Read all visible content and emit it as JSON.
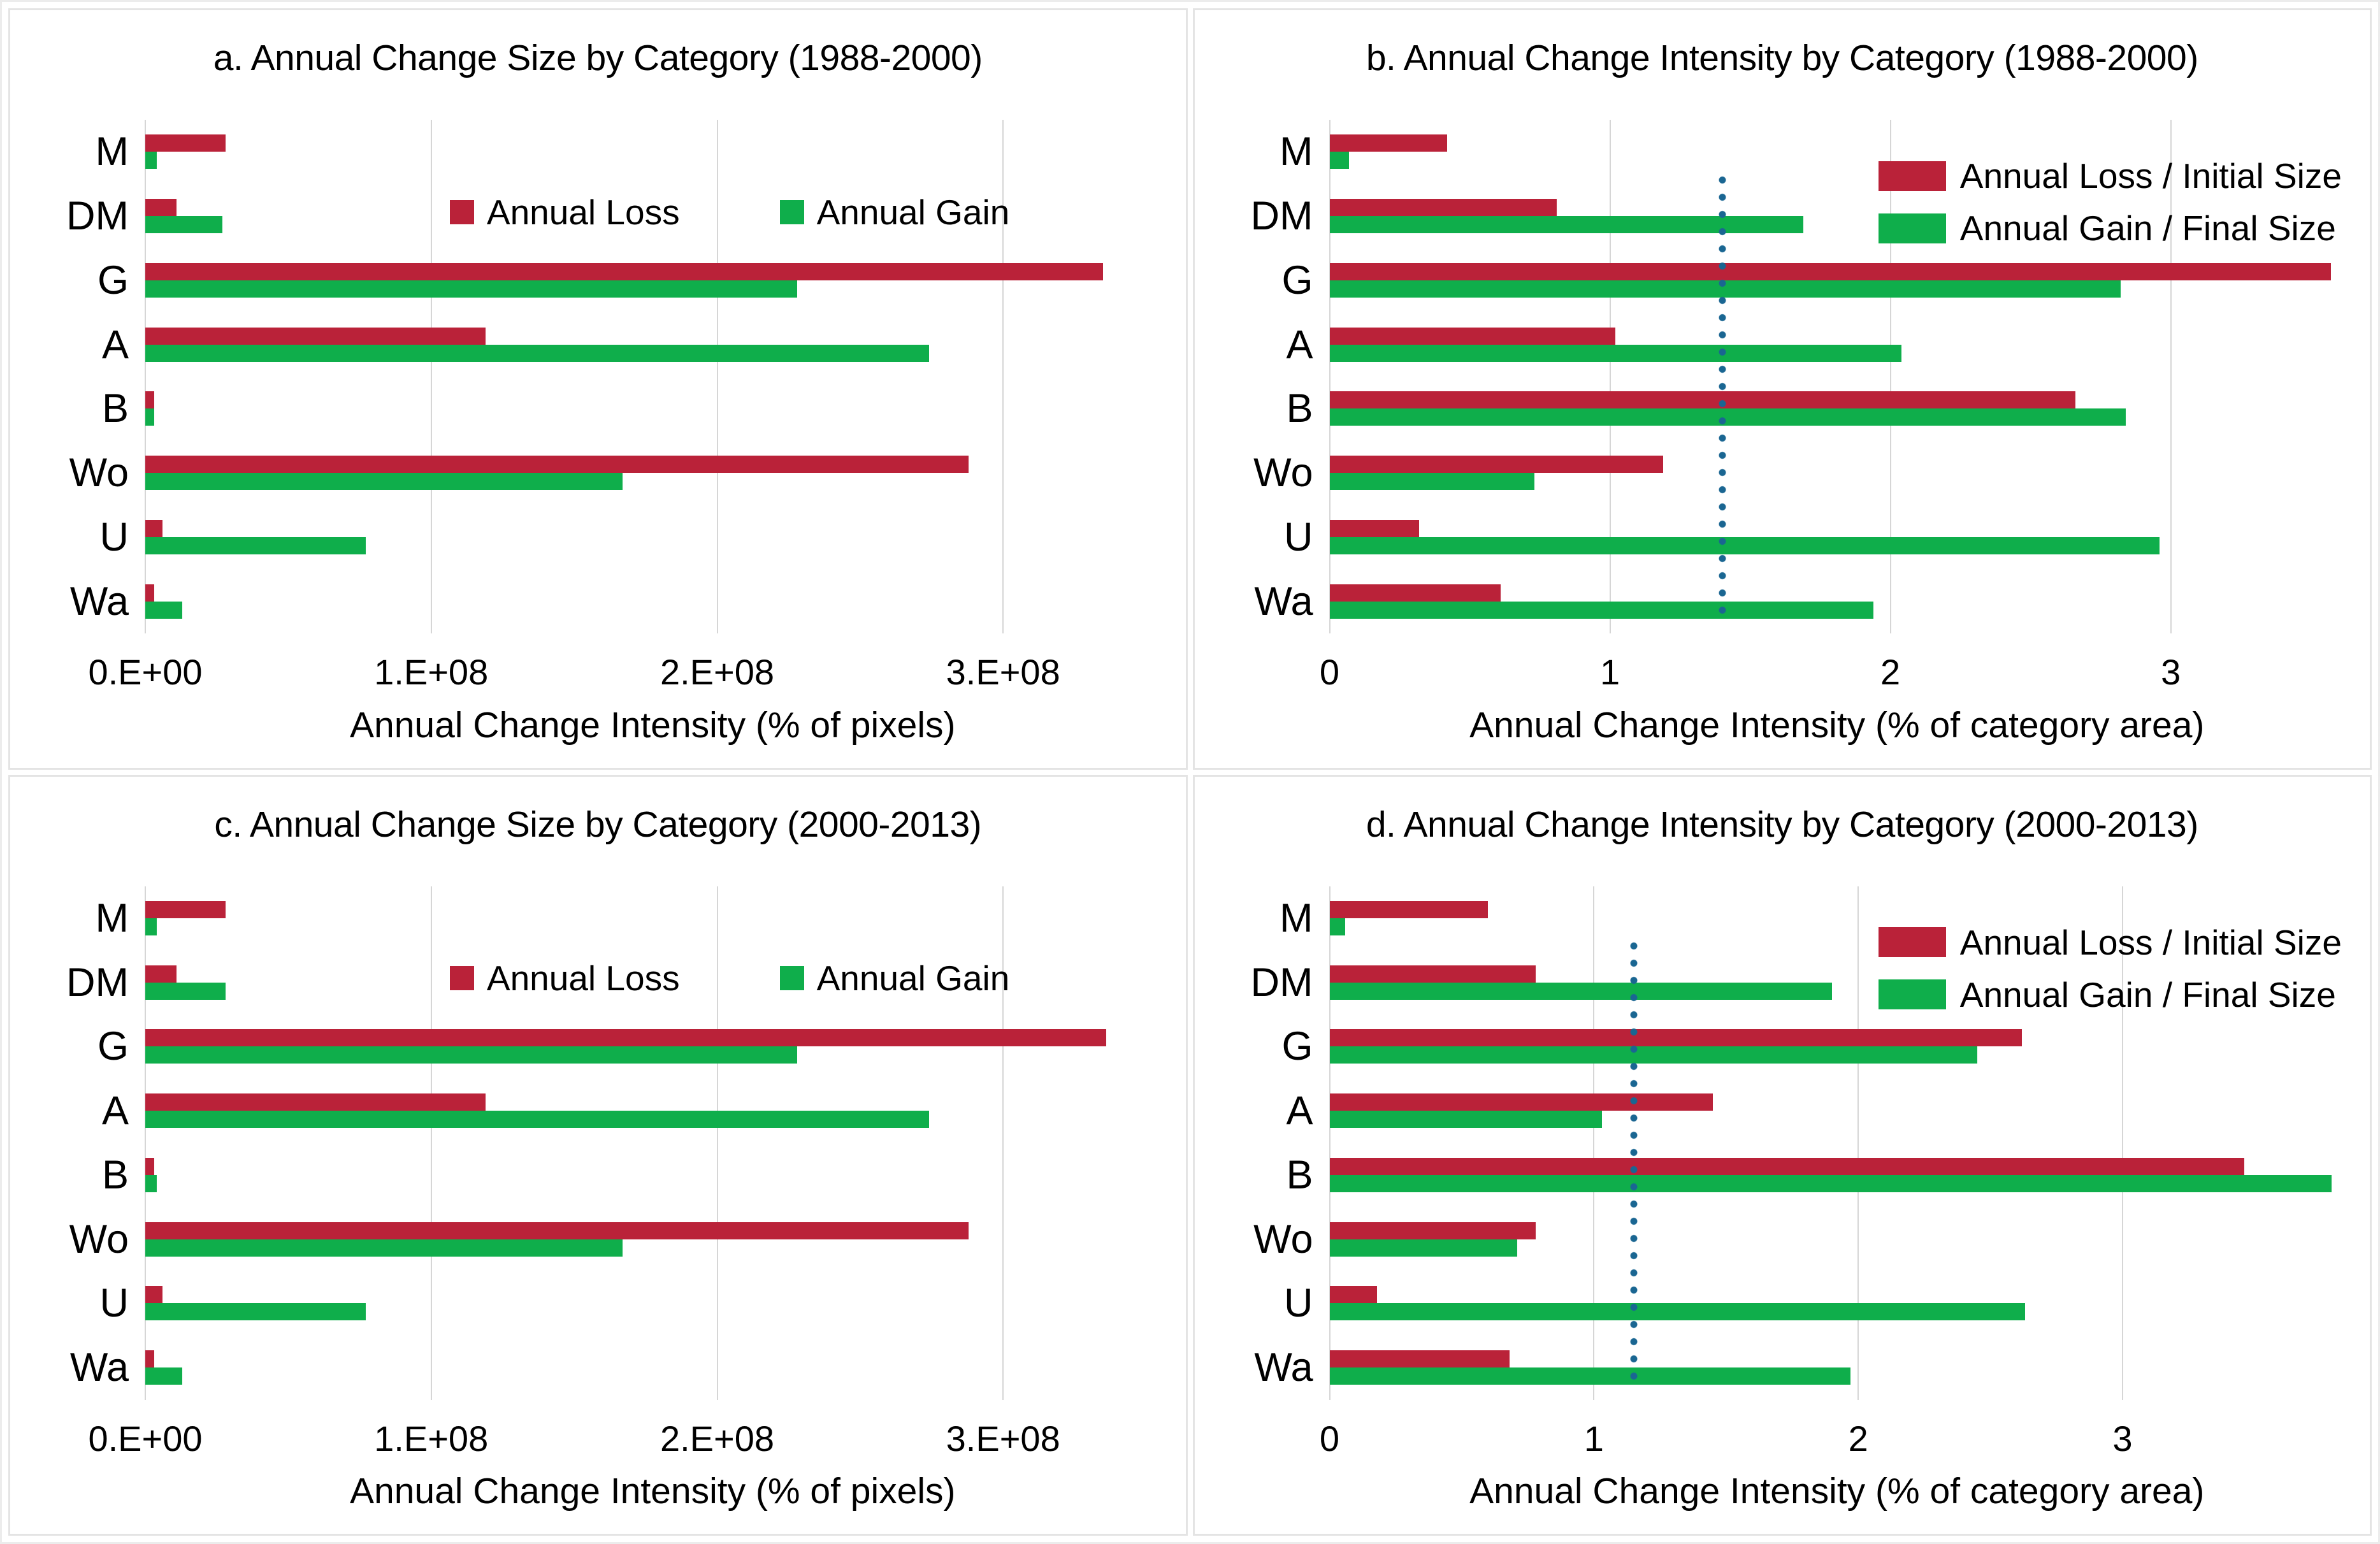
{
  "colors": {
    "loss": "#ba2239",
    "gain": "#0fae4b",
    "refline": "#1a6692",
    "grid": "#d6d6d6",
    "panel_border": "#e4e4e4",
    "text": "#000000",
    "background": "#ffffff"
  },
  "chart_data": [
    {
      "id": "a",
      "type": "bar",
      "orientation": "horizontal",
      "title": "a. Annual Change Size by Category (1988-2000)",
      "xlabel": "Annual Change Intensity (% of pixels)",
      "categories": [
        "M",
        "DM",
        "G",
        "A",
        "B",
        "Wo",
        "U",
        "Wa"
      ],
      "series": [
        {
          "name": "Annual Loss",
          "color_key": "loss",
          "values": [
            28000000,
            11000000,
            335000000,
            119000000,
            3000000,
            288000000,
            6000000,
            3000000
          ]
        },
        {
          "name": "Annual Gain",
          "color_key": "gain",
          "values": [
            4000000,
            27000000,
            228000000,
            274000000,
            3000000,
            167000000,
            77000000,
            13000000
          ]
        }
      ],
      "xticks": {
        "values": [
          0,
          100000000,
          200000000,
          300000000
        ],
        "labels": [
          "0.E+00",
          "1.E+08",
          "2.E+08",
          "3.E+08"
        ]
      },
      "xlim": [
        0,
        355000000
      ],
      "grid": true,
      "legend_style": "inline",
      "legend_position": "inside-upper-middle"
    },
    {
      "id": "b",
      "type": "bar",
      "orientation": "horizontal",
      "title": "b. Annual Change Intensity by Category (1988-2000)",
      "xlabel": "Annual Change Intensity (% of category area)",
      "categories": [
        "M",
        "DM",
        "G",
        "A",
        "B",
        "Wo",
        "U",
        "Wa"
      ],
      "series": [
        {
          "name": "Annual Loss / Initial Size",
          "color_key": "loss",
          "values": [
            0.42,
            0.81,
            3.57,
            1.02,
            2.66,
            1.19,
            0.32,
            0.61
          ]
        },
        {
          "name": "Annual Gain / Final Size",
          "color_key": "gain",
          "values": [
            0.07,
            1.69,
            2.82,
            2.04,
            2.84,
            0.73,
            2.96,
            1.94
          ]
        }
      ],
      "xticks": {
        "values": [
          0,
          1,
          2,
          3
        ],
        "labels": [
          "0",
          "1",
          "2",
          "3"
        ]
      },
      "xlim": [
        0,
        3.62
      ],
      "refline": 1.4,
      "grid": true,
      "legend_style": "block",
      "legend_position": "top-right"
    },
    {
      "id": "c",
      "type": "bar",
      "orientation": "horizontal",
      "title": "c. Annual Change Size by Category (2000-2013)",
      "xlabel": "Annual Change Intensity (% of pixels)",
      "categories": [
        "M",
        "DM",
        "G",
        "A",
        "B",
        "Wo",
        "U",
        "Wa"
      ],
      "series": [
        {
          "name": "Annual Loss",
          "color_key": "loss",
          "values": [
            28000000,
            11000000,
            336000000,
            119000000,
            3000000,
            288000000,
            6000000,
            3000000
          ]
        },
        {
          "name": "Annual Gain",
          "color_key": "gain",
          "values": [
            4000000,
            28000000,
            228000000,
            274000000,
            4000000,
            167000000,
            77000000,
            13000000
          ]
        }
      ],
      "xticks": {
        "values": [
          0,
          100000000,
          200000000,
          300000000
        ],
        "labels": [
          "0.E+00",
          "1.E+08",
          "2.E+08",
          "3.E+08"
        ]
      },
      "xlim": [
        0,
        355000000
      ],
      "grid": true,
      "legend_style": "inline",
      "legend_position": "inside-upper-middle"
    },
    {
      "id": "d",
      "type": "bar",
      "orientation": "horizontal",
      "title": "d. Annual Change Intensity by Category (2000-2013)",
      "xlabel": "Annual Change Intensity (% of category area)",
      "categories": [
        "M",
        "DM",
        "G",
        "A",
        "B",
        "Wo",
        "U",
        "Wa"
      ],
      "series": [
        {
          "name": "Annual Loss / Initial Size",
          "color_key": "loss",
          "values": [
            0.6,
            0.78,
            2.62,
            1.45,
            3.46,
            0.78,
            0.18,
            0.68
          ]
        },
        {
          "name": "Annual Gain / Final Size",
          "color_key": "gain",
          "values": [
            0.06,
            1.9,
            2.45,
            1.03,
            3.79,
            0.71,
            2.63,
            1.97
          ]
        }
      ],
      "xticks": {
        "values": [
          0,
          1,
          2,
          3
        ],
        "labels": [
          "0",
          "1",
          "2",
          "3"
        ]
      },
      "xlim": [
        0,
        3.84
      ],
      "refline": 1.15,
      "grid": true,
      "legend_style": "block",
      "legend_position": "top-right"
    }
  ]
}
